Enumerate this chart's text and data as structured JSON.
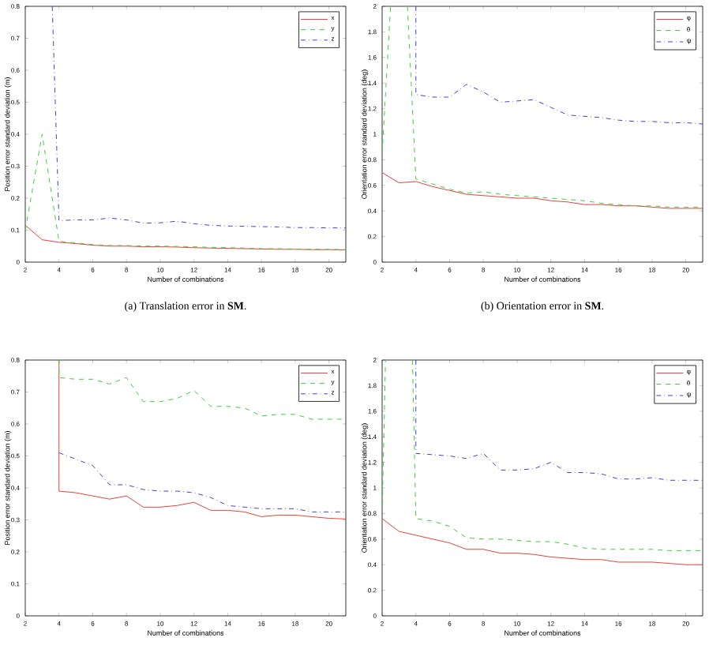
{
  "chart_data": [
    {
      "type": "line",
      "title": "(a) Translation error in **SM**.",
      "xlabel": "Number of combinations",
      "ylabel": "Position error standard deviation (m)",
      "xlim": [
        2,
        21
      ],
      "xticks": [
        2,
        4,
        6,
        8,
        10,
        12,
        14,
        16,
        18,
        20
      ],
      "ylim": [
        0,
        0.8
      ],
      "yticks": [
        0,
        0.1,
        0.2,
        0.3,
        0.4,
        0.5,
        0.6,
        0.7,
        0.8
      ],
      "legend": "top right",
      "grid": false,
      "series": [
        {
          "name": "x",
          "color": "#e8413c",
          "line_style": "solid",
          "x": [
            2,
            3,
            4,
            5,
            6,
            7,
            8,
            9,
            10,
            11,
            12,
            13,
            14,
            15,
            16,
            17,
            18,
            19,
            20,
            21
          ],
          "values": [
            0.115,
            0.07,
            0.062,
            0.058,
            0.053,
            0.05,
            0.05,
            0.048,
            0.048,
            0.047,
            0.045,
            0.044,
            0.043,
            0.042,
            0.041,
            0.04,
            0.04,
            0.039,
            0.039,
            0.038
          ]
        },
        {
          "name": "y",
          "color": "#3ccf3c",
          "line_style": "dashed",
          "x": [
            2,
            3,
            4,
            5,
            6,
            7,
            8,
            9,
            10,
            11,
            12,
            13,
            14,
            15,
            16,
            17,
            18,
            19,
            20,
            21
          ],
          "values": [
            0.1,
            0.4,
            0.065,
            0.06,
            0.055,
            0.052,
            0.052,
            0.05,
            0.05,
            0.049,
            0.048,
            0.046,
            0.045,
            0.044,
            0.042,
            0.042,
            0.041,
            0.04,
            0.04,
            0.039
          ]
        },
        {
          "name": "z",
          "color": "#4040e0",
          "line_style": "dashdot",
          "x": [
            3.6,
            4,
            5,
            6,
            7,
            8,
            9,
            10,
            11,
            12,
            13,
            14,
            15,
            16,
            17,
            18,
            19,
            20,
            21
          ],
          "values": [
            0.8,
            0.13,
            0.132,
            0.132,
            0.138,
            0.132,
            0.122,
            0.123,
            0.128,
            0.12,
            0.115,
            0.113,
            0.112,
            0.111,
            0.11,
            0.108,
            0.108,
            0.107,
            0.107
          ]
        }
      ]
    },
    {
      "type": "line",
      "title": "(b) Orientation error in **SM**.",
      "xlabel": "Number of combinations",
      "ylabel": "Orientation error standard deviation (deg)",
      "xlim": [
        2,
        21
      ],
      "xticks": [
        2,
        4,
        6,
        8,
        10,
        12,
        14,
        16,
        18,
        20
      ],
      "ylim": [
        0,
        2
      ],
      "yticks": [
        0,
        0.2,
        0.4,
        0.6,
        0.8,
        1,
        1.2,
        1.4,
        1.6,
        1.8,
        2
      ],
      "legend": "top right",
      "grid": false,
      "series": [
        {
          "name": "φ",
          "color": "#e8413c",
          "line_style": "solid",
          "x": [
            2,
            3,
            4,
            5,
            6,
            7,
            8,
            9,
            10,
            11,
            12,
            13,
            14,
            15,
            16,
            17,
            18,
            19,
            20,
            21
          ],
          "values": [
            0.7,
            0.62,
            0.63,
            0.59,
            0.56,
            0.53,
            0.52,
            0.51,
            0.5,
            0.5,
            0.48,
            0.47,
            0.45,
            0.45,
            0.44,
            0.44,
            0.43,
            0.42,
            0.42,
            0.42
          ]
        },
        {
          "name": "θ",
          "color": "#3ccf3c",
          "line_style": "dashed",
          "x": [
            2,
            2.5,
            3,
            3.5,
            4,
            5,
            6,
            7,
            8,
            9,
            10,
            11,
            12,
            13,
            14,
            15,
            16,
            17,
            18,
            19,
            20,
            21
          ],
          "values": [
            0.85,
            2,
            null,
            2,
            0.65,
            0.61,
            0.57,
            0.54,
            0.55,
            0.53,
            0.52,
            0.51,
            0.5,
            0.49,
            0.48,
            0.46,
            0.45,
            0.44,
            0.44,
            0.43,
            0.43,
            0.43
          ]
        },
        {
          "name": "ψ",
          "color": "#4040e0",
          "line_style": "dashdot",
          "x": [
            4,
            4,
            5,
            6,
            7,
            8,
            9,
            10,
            11,
            12,
            13,
            14,
            15,
            16,
            17,
            18,
            19,
            20,
            21
          ],
          "values": [
            2,
            1.31,
            1.29,
            1.29,
            1.39,
            1.33,
            1.25,
            1.26,
            1.27,
            1.21,
            1.15,
            1.14,
            1.13,
            1.11,
            1.1,
            1.1,
            1.09,
            1.09,
            1.08
          ]
        }
      ]
    },
    {
      "type": "line",
      "xlabel": "Number of combinations",
      "ylabel": "Position error standard deviation (m)",
      "xlim": [
        2,
        21
      ],
      "xticks": [
        2,
        4,
        6,
        8,
        10,
        12,
        14,
        16,
        18,
        20
      ],
      "ylim": [
        0,
        0.8
      ],
      "yticks": [
        0,
        0.1,
        0.2,
        0.3,
        0.4,
        0.5,
        0.6,
        0.7,
        0.8
      ],
      "legend": "top right",
      "grid": false,
      "series": [
        {
          "name": "x",
          "color": "#e8413c",
          "line_style": "solid",
          "x": [
            4,
            4,
            5,
            6,
            7,
            8,
            9,
            10,
            11,
            12,
            13,
            14,
            15,
            16,
            17,
            18,
            19,
            20,
            21
          ],
          "values": [
            0.8,
            0.39,
            0.385,
            0.375,
            0.365,
            0.375,
            0.34,
            0.34,
            0.345,
            0.355,
            0.33,
            0.33,
            0.325,
            0.31,
            0.315,
            0.315,
            0.31,
            0.305,
            0.303
          ]
        },
        {
          "name": "y",
          "color": "#3ccf3c",
          "line_style": "dashed",
          "x": [
            4,
            4,
            5,
            6,
            7,
            8,
            9,
            10,
            11,
            12,
            13,
            14,
            15,
            16,
            17,
            18,
            19,
            20,
            21
          ],
          "values": [
            0.8,
            0.745,
            0.74,
            0.74,
            0.725,
            0.745,
            0.67,
            0.67,
            0.68,
            0.705,
            0.655,
            0.655,
            0.65,
            0.625,
            0.63,
            0.63,
            0.615,
            0.615,
            0.615
          ]
        },
        {
          "name": "z",
          "color": "#4040e0",
          "line_style": "dashdot",
          "x": [
            4,
            5,
            6,
            7,
            8,
            9,
            10,
            11,
            12,
            13,
            14,
            15,
            16,
            17,
            18,
            19,
            20,
            21
          ],
          "values": [
            0.51,
            0.49,
            0.47,
            0.41,
            0.41,
            0.395,
            0.39,
            0.39,
            0.385,
            0.37,
            0.345,
            0.34,
            0.335,
            0.335,
            0.335,
            0.325,
            0.325,
            0.325
          ]
        }
      ]
    },
    {
      "type": "line",
      "xlabel": "Number of combinations",
      "ylabel": "Orientation error standard deviation (deg)",
      "xlim": [
        2,
        21
      ],
      "xticks": [
        2,
        4,
        6,
        8,
        10,
        12,
        14,
        16,
        18,
        20
      ],
      "ylim": [
        0,
        2
      ],
      "yticks": [
        0,
        0.2,
        0.4,
        0.6,
        0.8,
        1,
        1.2,
        1.4,
        1.6,
        1.8,
        2
      ],
      "legend": "top right",
      "grid": false,
      "series": [
        {
          "name": "φ",
          "color": "#e8413c",
          "line_style": "solid",
          "x": [
            2,
            3,
            4,
            5,
            6,
            7,
            8,
            9,
            10,
            11,
            12,
            13,
            14,
            15,
            16,
            17,
            18,
            19,
            20,
            21
          ],
          "values": [
            0.76,
            0.66,
            0.63,
            0.6,
            0.57,
            0.52,
            0.52,
            0.49,
            0.49,
            0.48,
            0.46,
            0.45,
            0.44,
            0.44,
            0.42,
            0.42,
            0.42,
            0.41,
            0.4,
            0.4
          ]
        },
        {
          "name": "θ",
          "color": "#3ccf3c",
          "line_style": "dashed",
          "x": [
            2,
            2.2,
            3,
            3.8,
            4,
            5,
            6,
            7,
            8,
            9,
            10,
            11,
            12,
            13,
            14,
            15,
            16,
            17,
            18,
            19,
            20,
            21
          ],
          "values": [
            0.8,
            2,
            null,
            2,
            0.76,
            0.74,
            0.7,
            0.61,
            0.6,
            0.6,
            0.59,
            0.58,
            0.58,
            0.56,
            0.53,
            0.52,
            0.52,
            0.52,
            0.52,
            0.51,
            0.51,
            0.51
          ]
        },
        {
          "name": "ψ",
          "color": "#4040e0",
          "line_style": "dashdot",
          "x": [
            4,
            4,
            5,
            6,
            7,
            8,
            9,
            10,
            11,
            12,
            13,
            14,
            15,
            16,
            17,
            18,
            19,
            20,
            21
          ],
          "values": [
            2,
            1.27,
            1.26,
            1.25,
            1.23,
            1.27,
            1.14,
            1.14,
            1.15,
            1.2,
            1.12,
            1.12,
            1.11,
            1.07,
            1.07,
            1.08,
            1.06,
            1.06,
            1.06
          ]
        }
      ]
    }
  ]
}
